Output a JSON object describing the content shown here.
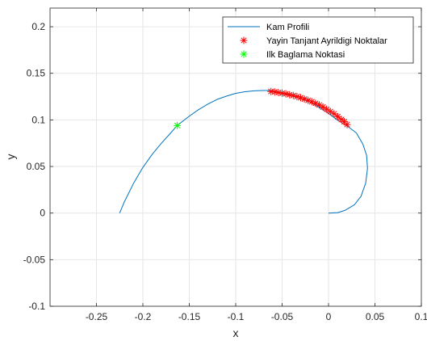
{
  "chart_data": {
    "type": "line",
    "xlabel": "x",
    "ylabel": "y",
    "xlim": [
      -0.3,
      0.1
    ],
    "ylim": [
      -0.1,
      0.22
    ],
    "xticks": [
      -0.25,
      -0.2,
      -0.15,
      -0.1,
      -0.05,
      0,
      0.05,
      0.1
    ],
    "yticks": [
      -0.1,
      -0.05,
      0,
      0.05,
      0.1,
      0.15,
      0.2
    ],
    "xtick_labels": [
      "-0.25",
      "-0.2",
      "-0.15",
      "-0.1",
      "-0.05",
      "0",
      "0.05",
      "0.1"
    ],
    "ytick_labels": [
      "-0.1",
      "-0.05",
      "0",
      "0.05",
      "0.1",
      "0.15",
      "0.2"
    ],
    "grid": true,
    "legend_position": "top-right",
    "series": [
      {
        "name": "Kam Profili",
        "kind": "line",
        "color": "#0072BD",
        "x": [
          -0.225,
          -0.22,
          -0.21,
          -0.2,
          -0.19,
          -0.18,
          -0.17,
          -0.163,
          -0.15,
          -0.14,
          -0.13,
          -0.12,
          -0.11,
          -0.1,
          -0.09,
          -0.08,
          -0.07,
          -0.065,
          -0.06,
          -0.05,
          -0.04,
          -0.03,
          -0.02,
          -0.01,
          0.0,
          0.01,
          0.02,
          0.03,
          0.037,
          0.041,
          0.042,
          0.04,
          0.035,
          0.028,
          0.018,
          0.01,
          0.0
        ],
        "y": [
          0.0,
          0.012,
          0.032,
          0.049,
          0.063,
          0.075,
          0.086,
          0.094,
          0.104,
          0.111,
          0.117,
          0.122,
          0.1255,
          0.1285,
          0.1302,
          0.1312,
          0.1315,
          0.1315,
          0.131,
          0.129,
          0.1265,
          0.123,
          0.119,
          0.1135,
          0.107,
          0.0995,
          0.0935,
          0.086,
          0.074,
          0.062,
          0.048,
          0.032,
          0.018,
          0.009,
          0.003,
          0.0005,
          0.0
        ]
      },
      {
        "name": "Yayin Tanjant Ayrildigi Noktalar",
        "kind": "markers",
        "marker": "*",
        "color": "#FF0000",
        "x": [
          -0.062,
          -0.058,
          -0.054,
          -0.05,
          -0.046,
          -0.042,
          -0.038,
          -0.034,
          -0.03,
          -0.026,
          -0.022,
          -0.018,
          -0.014,
          -0.01,
          -0.006,
          -0.002,
          0.002,
          0.006,
          0.01,
          0.014,
          0.017,
          0.02
        ],
        "y": [
          0.1305,
          0.13,
          0.1294,
          0.1287,
          0.128,
          0.127,
          0.1262,
          0.125,
          0.1238,
          0.1224,
          0.121,
          0.1195,
          0.1178,
          0.116,
          0.1138,
          0.1115,
          0.109,
          0.1065,
          0.1035,
          0.1005,
          0.098,
          0.095
        ]
      },
      {
        "name": "Ilk Baglama Noktasi",
        "kind": "markers",
        "marker": "*",
        "color": "#00FF00",
        "x": [
          -0.163
        ],
        "y": [
          0.094
        ]
      }
    ]
  }
}
